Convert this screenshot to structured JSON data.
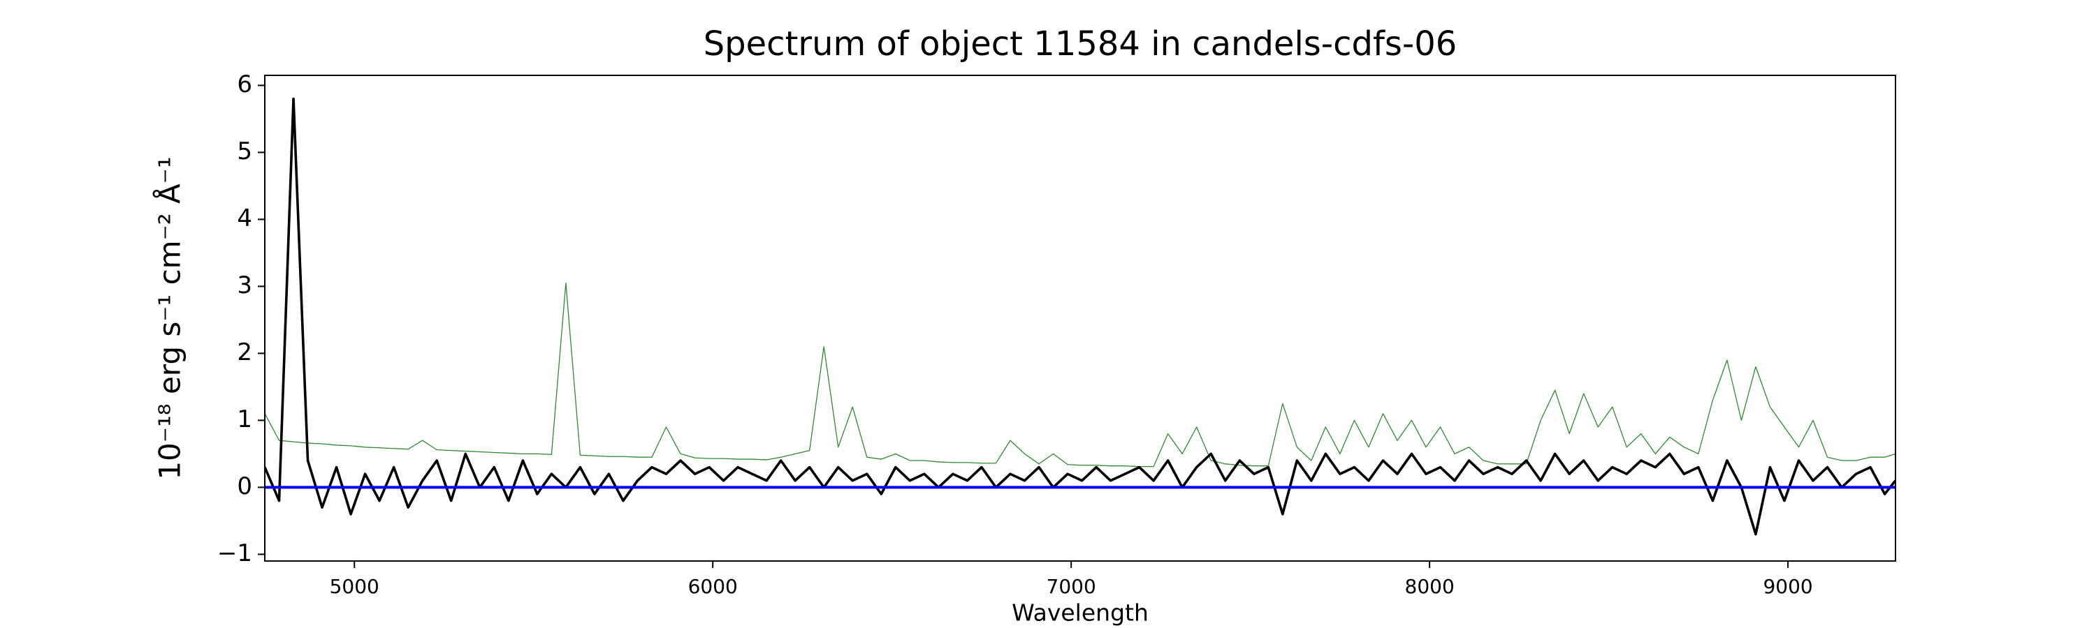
{
  "chart_data": {
    "type": "line",
    "title": "Spectrum of object 11584 in candels-cdfs-06",
    "xlabel": "Wavelength",
    "ylabel": "10⁻¹⁸ erg s⁻¹ cm⁻² Å⁻¹",
    "x": [
      4750,
      4790,
      4830,
      4870,
      4910,
      4950,
      4990,
      5030,
      5070,
      5110,
      5150,
      5190,
      5230,
      5270,
      5310,
      5350,
      5390,
      5430,
      5470,
      5510,
      5550,
      5590,
      5630,
      5670,
      5710,
      5750,
      5790,
      5830,
      5870,
      5910,
      5950,
      5990,
      6030,
      6070,
      6110,
      6150,
      6190,
      6230,
      6270,
      6310,
      6350,
      6390,
      6430,
      6470,
      6510,
      6550,
      6590,
      6630,
      6670,
      6710,
      6750,
      6790,
      6830,
      6870,
      6910,
      6950,
      6990,
      7030,
      7070,
      7110,
      7150,
      7190,
      7230,
      7270,
      7310,
      7350,
      7390,
      7430,
      7470,
      7510,
      7550,
      7590,
      7630,
      7670,
      7710,
      7750,
      7790,
      7830,
      7870,
      7910,
      7950,
      7990,
      8030,
      8070,
      8110,
      8150,
      8190,
      8230,
      8270,
      8310,
      8350,
      8390,
      8430,
      8470,
      8510,
      8550,
      8590,
      8630,
      8670,
      8710,
      8750,
      8790,
      8830,
      8870,
      8910,
      8950,
      8990,
      9030,
      9070,
      9110,
      9150,
      9190,
      9230,
      9270,
      9300
    ],
    "series": [
      {
        "color": "#2e8b2e",
        "width": 1.3,
        "values": [
          1.1,
          0.7,
          0.68,
          0.66,
          0.65,
          0.63,
          0.62,
          0.6,
          0.59,
          0.58,
          0.57,
          0.7,
          0.56,
          0.55,
          0.54,
          0.53,
          0.52,
          0.51,
          0.5,
          0.5,
          0.49,
          3.05,
          0.48,
          0.47,
          0.46,
          0.46,
          0.45,
          0.45,
          0.9,
          0.5,
          0.44,
          0.43,
          0.43,
          0.42,
          0.42,
          0.41,
          0.45,
          0.5,
          0.55,
          2.1,
          0.6,
          1.2,
          0.45,
          0.42,
          0.5,
          0.4,
          0.4,
          0.38,
          0.37,
          0.37,
          0.36,
          0.36,
          0.7,
          0.5,
          0.35,
          0.5,
          0.34,
          0.33,
          0.33,
          0.32,
          0.32,
          0.31,
          0.31,
          0.8,
          0.5,
          0.9,
          0.4,
          0.35,
          0.33,
          0.32,
          0.32,
          1.25,
          0.6,
          0.4,
          0.9,
          0.5,
          1.0,
          0.6,
          1.1,
          0.7,
          1.0,
          0.6,
          0.9,
          0.5,
          0.6,
          0.4,
          0.35,
          0.35,
          0.35,
          1.0,
          1.45,
          0.8,
          1.4,
          0.9,
          1.2,
          0.6,
          0.8,
          0.5,
          0.75,
          0.6,
          0.5,
          1.3,
          1.9,
          1.0,
          1.8,
          1.2,
          0.9,
          0.6,
          1.0,
          0.45,
          0.4,
          0.4,
          0.45,
          0.45,
          0.5
        ]
      },
      {
        "color": "#000000",
        "width": 3.6,
        "values": [
          0.3,
          -0.2,
          5.8,
          0.4,
          -0.3,
          0.3,
          -0.4,
          0.2,
          -0.2,
          0.3,
          -0.3,
          0.1,
          0.4,
          -0.2,
          0.5,
          0.0,
          0.3,
          -0.2,
          0.4,
          -0.1,
          0.2,
          0.0,
          0.3,
          -0.1,
          0.2,
          -0.2,
          0.1,
          0.3,
          0.2,
          0.4,
          0.2,
          0.3,
          0.1,
          0.3,
          0.2,
          0.1,
          0.4,
          0.1,
          0.3,
          0.0,
          0.3,
          0.1,
          0.2,
          -0.1,
          0.3,
          0.1,
          0.2,
          0.0,
          0.2,
          0.1,
          0.3,
          0.0,
          0.2,
          0.1,
          0.3,
          0.0,
          0.2,
          0.1,
          0.3,
          0.1,
          0.2,
          0.3,
          0.1,
          0.4,
          0.0,
          0.3,
          0.5,
          0.1,
          0.4,
          0.2,
          0.3,
          -0.4,
          0.4,
          0.1,
          0.5,
          0.2,
          0.3,
          0.1,
          0.4,
          0.2,
          0.5,
          0.2,
          0.3,
          0.1,
          0.4,
          0.2,
          0.3,
          0.2,
          0.4,
          0.1,
          0.5,
          0.2,
          0.4,
          0.1,
          0.3,
          0.2,
          0.4,
          0.3,
          0.5,
          0.2,
          0.3,
          -0.2,
          0.4,
          0.0,
          -0.7,
          0.3,
          -0.2,
          0.4,
          0.1,
          0.3,
          0.0,
          0.2,
          0.3,
          -0.1,
          0.1
        ]
      }
    ],
    "axhline": 0,
    "axhline_color": "#0000ff",
    "xlim": [
      4750,
      9300
    ],
    "xticks": [
      5000,
      6000,
      7000,
      8000,
      9000
    ],
    "ylim": [
      -1.1,
      6.15
    ],
    "yticks": [
      {
        "value": -1,
        "label": "−1"
      },
      0,
      1,
      2,
      3,
      4,
      5,
      6
    ],
    "grid": false
  }
}
